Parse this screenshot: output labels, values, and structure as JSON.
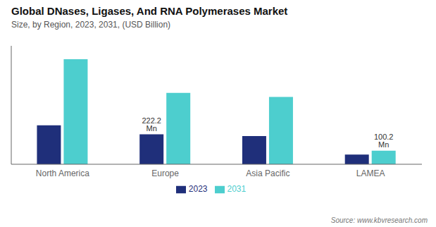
{
  "chart_data": {
    "type": "bar",
    "title": "Global DNases, Ligases, And RNA Polymerases Market",
    "subtitle": "Size, by Region, 2023, 2031, (USD Billion)",
    "source": "Source: www.kbvresearch.com",
    "categories": [
      "North America",
      "Europe",
      "Asia Pacific",
      "LAMEA"
    ],
    "series": [
      {
        "name": "2023",
        "color": "#1f2f7a",
        "values": [
          0.29,
          0.2222,
          0.21,
          0.072
        ],
        "value_labels": [
          null,
          "222.2 Mn",
          null,
          null
        ]
      },
      {
        "name": "2031",
        "color": "#4dcece",
        "values": [
          0.78,
          0.53,
          0.5,
          0.1002
        ],
        "value_labels": [
          null,
          null,
          null,
          "100.2 Mn"
        ]
      }
    ],
    "ylim": [
      0,
      0.88
    ],
    "grid": false,
    "legend": "bottom",
    "tick_labels": "x"
  }
}
